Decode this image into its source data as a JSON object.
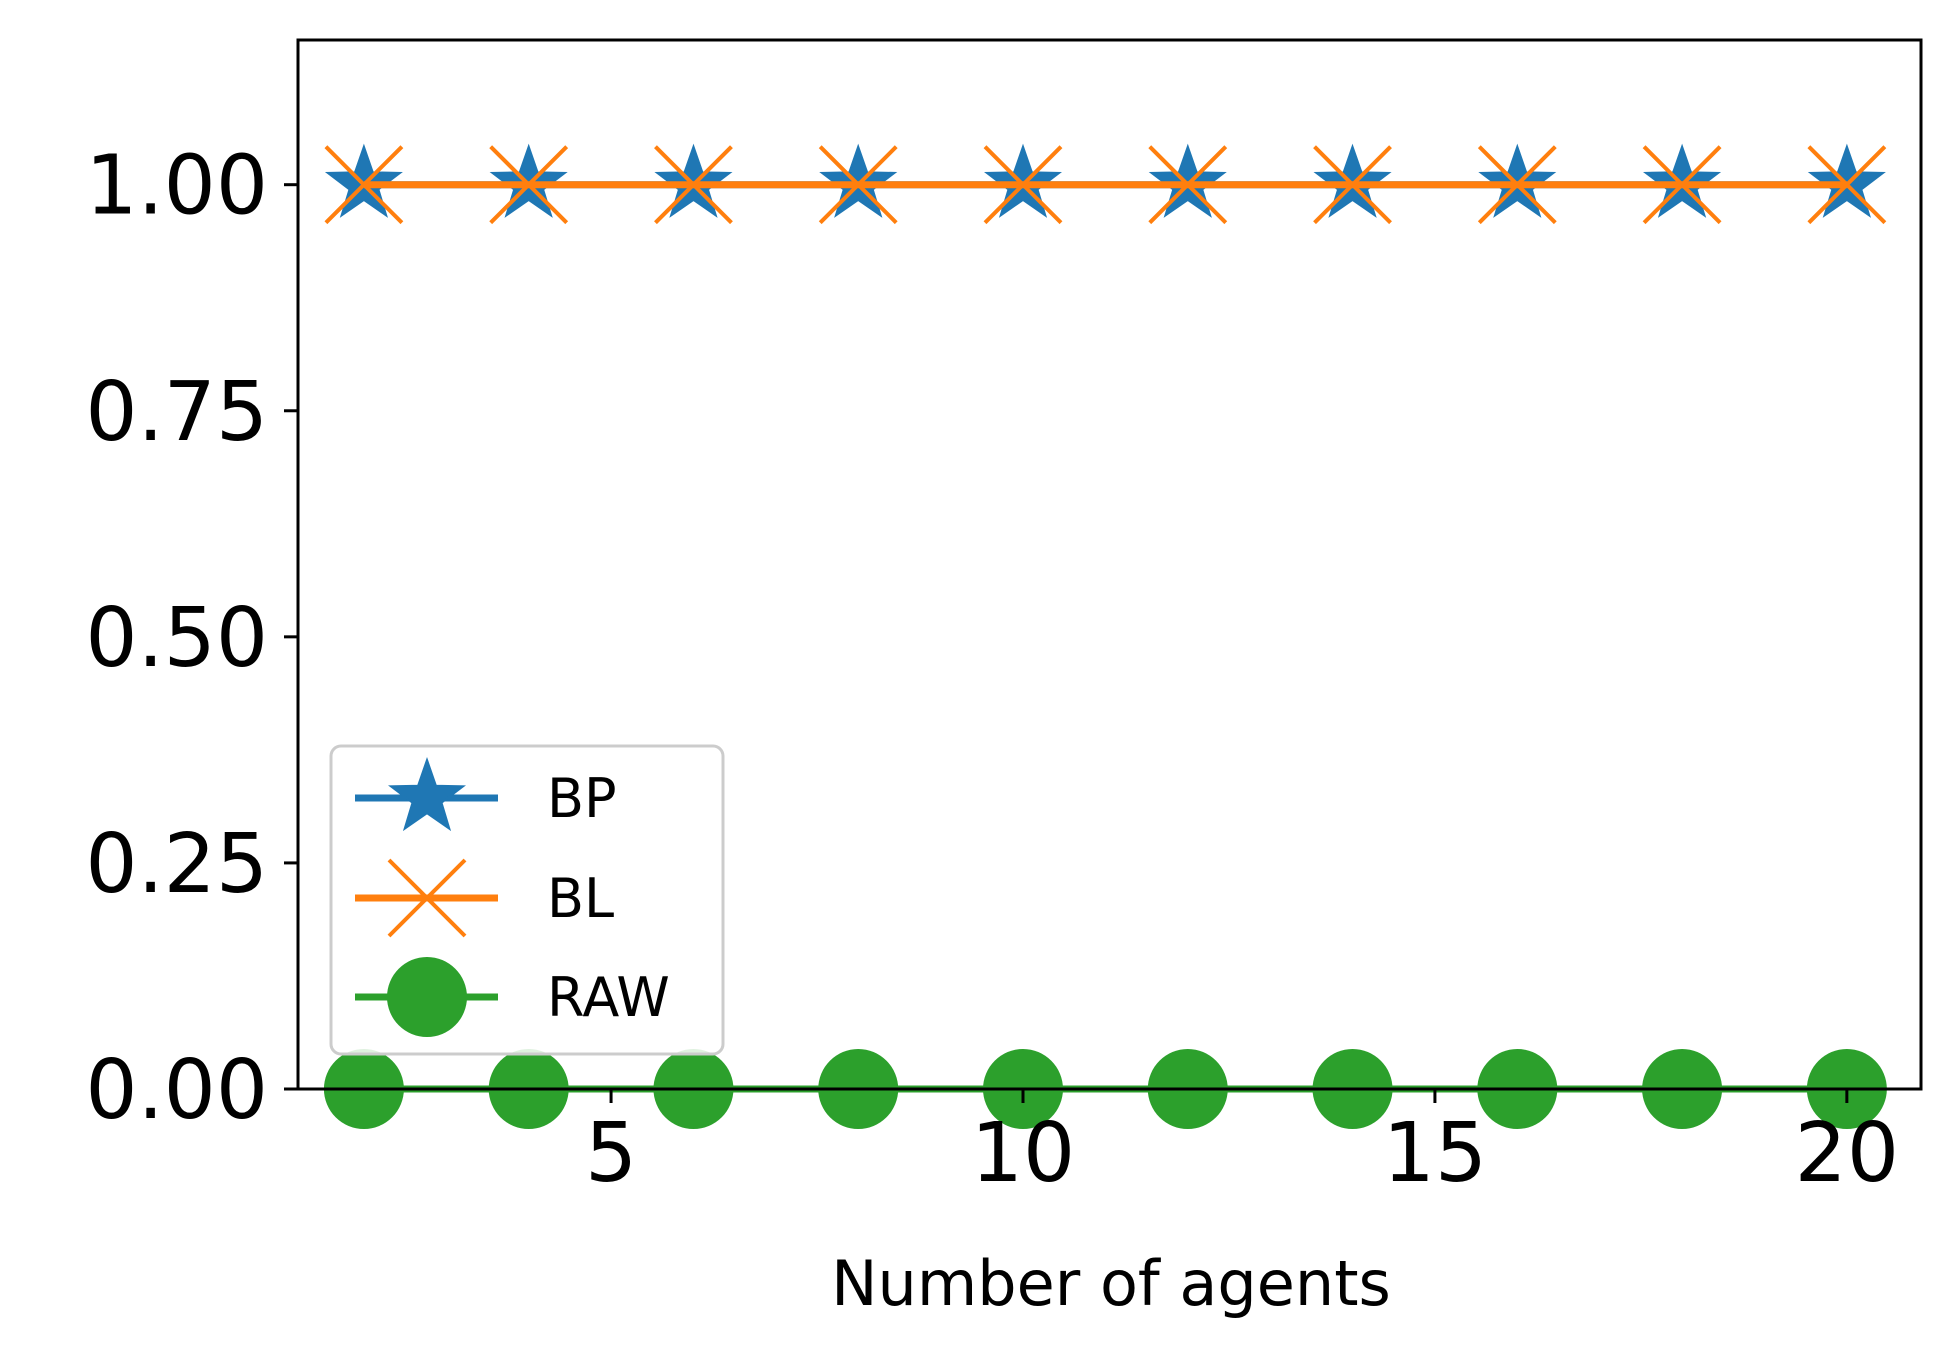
{
  "chart_data": {
    "type": "line",
    "title": "",
    "xlabel": "Number of agents",
    "ylabel": "",
    "xlim": [
      1.2,
      20.9
    ],
    "ylim": [
      0,
      1.16
    ],
    "x_ticks": [
      5,
      10,
      15,
      20
    ],
    "y_ticks": [
      0.0,
      0.25,
      0.5,
      0.75,
      1.0
    ],
    "x_tick_labels": [
      "5",
      "10",
      "15",
      "20"
    ],
    "y_tick_labels": [
      "0.00",
      "0.25",
      "0.50",
      "0.75",
      "1.00"
    ],
    "grid": false,
    "legend_position": "lower-left",
    "x": [
      2,
      4,
      6,
      8,
      10,
      12,
      14,
      16,
      18,
      20
    ],
    "series": [
      {
        "name": "BP",
        "marker": "star",
        "color": "#1f77b4",
        "values": [
          1,
          1,
          1,
          1,
          1,
          1,
          1,
          1,
          1,
          1
        ]
      },
      {
        "name": "BL",
        "marker": "x",
        "color": "#ff7f0e",
        "values": [
          1,
          1,
          1,
          1,
          1,
          1,
          1,
          1,
          1,
          1
        ]
      },
      {
        "name": "RAW",
        "marker": "circle",
        "color": "#2ca02c",
        "values": [
          0,
          0,
          0,
          0,
          0,
          0,
          0,
          0,
          0,
          0
        ]
      }
    ]
  }
}
